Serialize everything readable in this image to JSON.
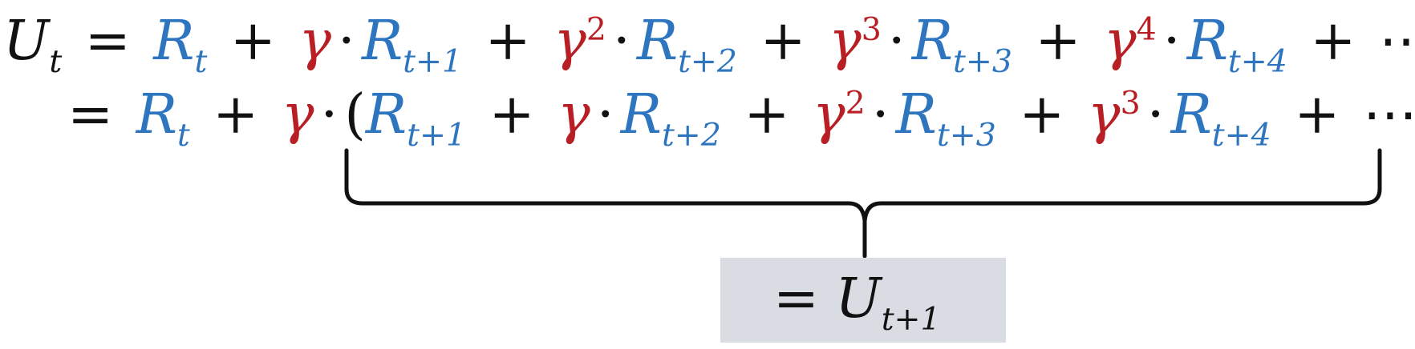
{
  "colors": {
    "reward": "#2e75c0",
    "gamma": "#b81f24",
    "text": "#111111",
    "result_box": "#d9dde3"
  },
  "line1": {
    "lhs": "U",
    "lhs_sub": "t",
    "eq": "=",
    "terms": [
      {
        "coef": "",
        "coef_sup": "",
        "r": "R",
        "r_sub": "t"
      },
      {
        "coef": "γ",
        "coef_sup": "",
        "r": "R",
        "r_sub": "t+1"
      },
      {
        "coef": "γ",
        "coef_sup": "2",
        "r": "R",
        "r_sub": "t+2"
      },
      {
        "coef": "γ",
        "coef_sup": "3",
        "r": "R",
        "r_sub": "t+3"
      },
      {
        "coef": "γ",
        "coef_sup": "4",
        "r": "R",
        "r_sub": "t+4"
      }
    ],
    "tail": "⋯"
  },
  "line2": {
    "eq": "=",
    "first_r": "R",
    "first_r_sub": "t",
    "outer_gamma": "γ",
    "open_paren": "(",
    "close_paren": ")",
    "inner_terms": [
      {
        "coef": "",
        "coef_sup": "",
        "r": "R",
        "r_sub": "t+1"
      },
      {
        "coef": "γ",
        "coef_sup": "",
        "r": "R",
        "r_sub": "t+2"
      },
      {
        "coef": "γ",
        "coef_sup": "2",
        "r": "R",
        "r_sub": "t+3"
      },
      {
        "coef": "γ",
        "coef_sup": "3",
        "r": "R",
        "r_sub": "t+4"
      }
    ],
    "tail": "⋯"
  },
  "plus": "+",
  "dot": "·",
  "result": {
    "eq": "=",
    "symbol": "U",
    "sub": "t+1"
  }
}
